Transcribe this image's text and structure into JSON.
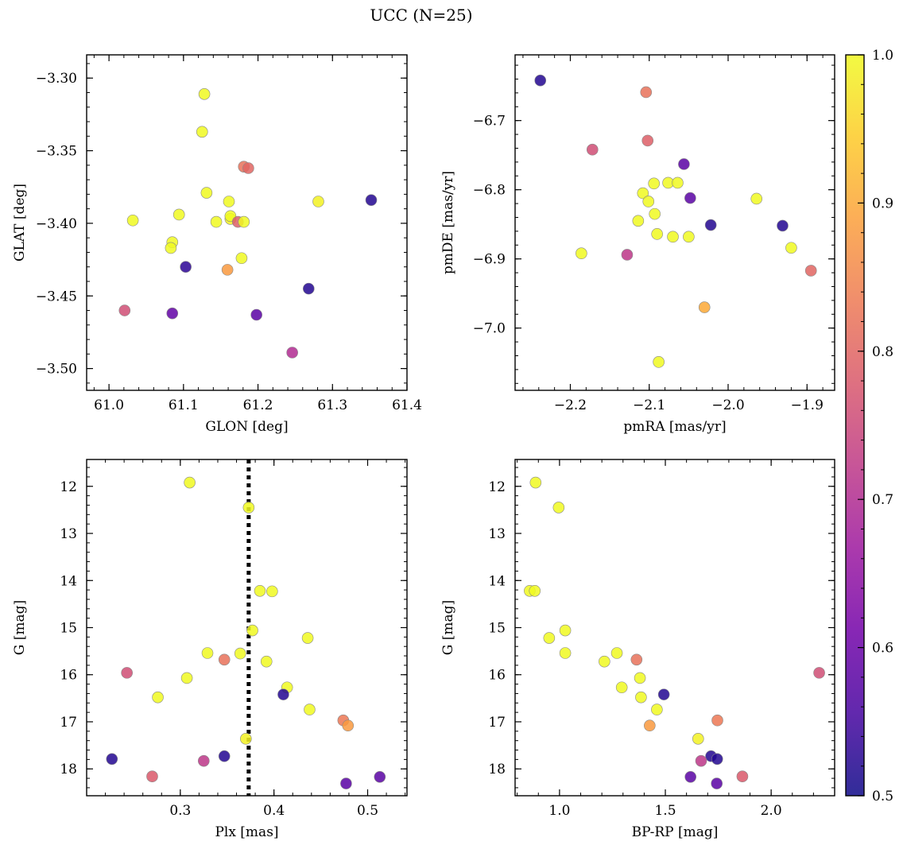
{
  "figure": {
    "title": "UCC (N=25)"
  },
  "chart_data": [
    {
      "type": "scatter",
      "panel": "top-left",
      "xlabel": "GLON [deg]",
      "ylabel": "GLAT [deg]",
      "xlim": [
        60.97,
        61.4
      ],
      "ylim": [
        -3.515,
        -3.284
      ],
      "y_inverted": false,
      "xticks": [
        61.0,
        61.1,
        61.2,
        61.3,
        61.4
      ],
      "xtick_labels": [
        "61.0",
        "61.1",
        "61.2",
        "61.3",
        "61.4"
      ],
      "yticks": [
        -3.3,
        -3.35,
        -3.4,
        -3.45,
        -3.5
      ],
      "ytick_labels": [
        "−3.30",
        "−3.35",
        "−3.40",
        "−3.45",
        "−3.50"
      ],
      "points": [
        {
          "x": 61.128,
          "y": -3.311,
          "c": 1.0
        },
        {
          "x": 61.125,
          "y": -3.337,
          "c": 1.0
        },
        {
          "x": 61.181,
          "y": -3.361,
          "c": 0.82
        },
        {
          "x": 61.187,
          "y": -3.362,
          "c": 0.8
        },
        {
          "x": 61.352,
          "y": -3.384,
          "c": 0.52
        },
        {
          "x": 61.281,
          "y": -3.385,
          "c": 0.99
        },
        {
          "x": 61.131,
          "y": -3.379,
          "c": 1.0
        },
        {
          "x": 61.161,
          "y": -3.385,
          "c": 1.0
        },
        {
          "x": 61.094,
          "y": -3.394,
          "c": 1.0
        },
        {
          "x": 61.032,
          "y": -3.398,
          "c": 1.0
        },
        {
          "x": 61.163,
          "y": -3.397,
          "c": 0.99
        },
        {
          "x": 61.163,
          "y": -3.395,
          "c": 1.0
        },
        {
          "x": 61.173,
          "y": -3.399,
          "c": 0.79
        },
        {
          "x": 61.181,
          "y": -3.399,
          "c": 1.0
        },
        {
          "x": 61.144,
          "y": -3.399,
          "c": 1.0
        },
        {
          "x": 61.085,
          "y": -3.413,
          "c": 1.0
        },
        {
          "x": 61.083,
          "y": -3.417,
          "c": 1.0
        },
        {
          "x": 61.178,
          "y": -3.424,
          "c": 1.0
        },
        {
          "x": 61.103,
          "y": -3.43,
          "c": 0.53
        },
        {
          "x": 61.159,
          "y": -3.432,
          "c": 0.88
        },
        {
          "x": 61.268,
          "y": -3.445,
          "c": 0.52
        },
        {
          "x": 61.021,
          "y": -3.46,
          "c": 0.76
        },
        {
          "x": 61.085,
          "y": -3.462,
          "c": 0.59
        },
        {
          "x": 61.198,
          "y": -3.463,
          "c": 0.58
        },
        {
          "x": 61.246,
          "y": -3.489,
          "c": 0.7
        }
      ]
    },
    {
      "type": "scatter",
      "panel": "top-right",
      "xlabel": "pmRA [mas/yr]",
      "ylabel": "pmDE [mas/yr]",
      "xlim": [
        -2.27,
        -1.865
      ],
      "ylim": [
        -7.09,
        -6.605
      ],
      "y_inverted": false,
      "xticks": [
        -2.2,
        -2.1,
        -2.0,
        -1.9
      ],
      "xtick_labels": [
        "−2.2",
        "−2.1",
        "−2.0",
        "−1.9"
      ],
      "yticks": [
        -6.7,
        -6.8,
        -6.9,
        -7.0
      ],
      "ytick_labels": [
        "−6.7",
        "−6.8",
        "−6.9",
        "−7.0"
      ],
      "points": [
        {
          "x": -2.238,
          "y": -6.642,
          "c": 0.52
        },
        {
          "x": -2.104,
          "y": -6.659,
          "c": 0.82
        },
        {
          "x": -2.102,
          "y": -6.729,
          "c": 0.79
        },
        {
          "x": -2.172,
          "y": -6.742,
          "c": 0.76
        },
        {
          "x": -2.056,
          "y": -6.763,
          "c": 0.58
        },
        {
          "x": -2.048,
          "y": -6.812,
          "c": 0.58
        },
        {
          "x": -2.094,
          "y": -6.791,
          "c": 1.0
        },
        {
          "x": -2.076,
          "y": -6.79,
          "c": 1.0
        },
        {
          "x": -2.064,
          "y": -6.79,
          "c": 1.0
        },
        {
          "x": -2.108,
          "y": -6.805,
          "c": 1.0
        },
        {
          "x": -1.964,
          "y": -6.813,
          "c": 1.0
        },
        {
          "x": -2.101,
          "y": -6.817,
          "c": 1.0
        },
        {
          "x": -2.093,
          "y": -6.835,
          "c": 1.0
        },
        {
          "x": -2.114,
          "y": -6.845,
          "c": 1.0
        },
        {
          "x": -2.022,
          "y": -6.851,
          "c": 0.52
        },
        {
          "x": -1.931,
          "y": -6.852,
          "c": 0.52
        },
        {
          "x": -2.09,
          "y": -6.864,
          "c": 1.0
        },
        {
          "x": -2.07,
          "y": -6.868,
          "c": 1.0
        },
        {
          "x": -2.05,
          "y": -6.868,
          "c": 1.0
        },
        {
          "x": -1.92,
          "y": -6.884,
          "c": 1.0
        },
        {
          "x": -2.186,
          "y": -6.892,
          "c": 1.0
        },
        {
          "x": -2.128,
          "y": -6.894,
          "c": 0.72
        },
        {
          "x": -1.895,
          "y": -6.917,
          "c": 0.8
        },
        {
          "x": -2.03,
          "y": -6.97,
          "c": 0.9
        },
        {
          "x": -2.088,
          "y": -7.049,
          "c": 1.0
        }
      ]
    },
    {
      "type": "scatter",
      "panel": "bottom-left",
      "xlabel": "Plx [mas]",
      "ylabel": "G [mag]",
      "xlim": [
        0.2,
        0.542
      ],
      "ylim": [
        11.43,
        18.57
      ],
      "y_inverted": true,
      "xticks": [
        0.3,
        0.4,
        0.5
      ],
      "xtick_labels": [
        "0.3",
        "0.4",
        "0.5"
      ],
      "yticks": [
        12,
        13,
        14,
        15,
        16,
        17,
        18
      ],
      "ytick_labels": [
        "12",
        "13",
        "14",
        "15",
        "16",
        "17",
        "18"
      ],
      "vline": {
        "x": 0.373,
        "style": "dotted"
      },
      "points": [
        {
          "x": 0.31,
          "y": 11.92,
          "c": 1.0
        },
        {
          "x": 0.373,
          "y": 12.45,
          "c": 1.0
        },
        {
          "x": 0.385,
          "y": 14.22,
          "c": 1.0
        },
        {
          "x": 0.398,
          "y": 14.23,
          "c": 1.0
        },
        {
          "x": 0.377,
          "y": 15.06,
          "c": 1.0
        },
        {
          "x": 0.436,
          "y": 15.22,
          "c": 1.0
        },
        {
          "x": 0.329,
          "y": 15.54,
          "c": 1.0
        },
        {
          "x": 0.364,
          "y": 15.55,
          "c": 1.0
        },
        {
          "x": 0.347,
          "y": 15.68,
          "c": 0.82
        },
        {
          "x": 0.392,
          "y": 15.72,
          "c": 1.0
        },
        {
          "x": 0.243,
          "y": 15.96,
          "c": 0.76
        },
        {
          "x": 0.307,
          "y": 16.07,
          "c": 1.0
        },
        {
          "x": 0.414,
          "y": 16.27,
          "c": 1.0
        },
        {
          "x": 0.41,
          "y": 16.42,
          "c": 0.52
        },
        {
          "x": 0.276,
          "y": 16.48,
          "c": 1.0
        },
        {
          "x": 0.438,
          "y": 16.74,
          "c": 1.0
        },
        {
          "x": 0.474,
          "y": 16.97,
          "c": 0.83
        },
        {
          "x": 0.479,
          "y": 17.08,
          "c": 0.88
        },
        {
          "x": 0.37,
          "y": 17.36,
          "c": 0.99
        },
        {
          "x": 0.347,
          "y": 17.73,
          "c": 0.52
        },
        {
          "x": 0.227,
          "y": 17.79,
          "c": 0.52
        },
        {
          "x": 0.325,
          "y": 17.83,
          "c": 0.72
        },
        {
          "x": 0.27,
          "y": 18.16,
          "c": 0.78
        },
        {
          "x": 0.513,
          "y": 18.17,
          "c": 0.58
        },
        {
          "x": 0.477,
          "y": 18.31,
          "c": 0.58
        }
      ]
    },
    {
      "type": "scatter",
      "panel": "bottom-right",
      "xlabel": "BP-RP [mag]",
      "ylabel": "G [mag]",
      "xlim": [
        0.79,
        2.3
      ],
      "ylim": [
        11.43,
        18.57
      ],
      "y_inverted": true,
      "xticks": [
        1.0,
        1.5,
        2.0
      ],
      "xtick_labels": [
        "1.0",
        "1.5",
        "2.0"
      ],
      "yticks": [
        12,
        13,
        14,
        15,
        16,
        17,
        18
      ],
      "ytick_labels": [
        "12",
        "13",
        "14",
        "15",
        "16",
        "17",
        "18"
      ],
      "points": [
        {
          "x": 0.887,
          "y": 11.92,
          "c": 1.0
        },
        {
          "x": 0.996,
          "y": 12.45,
          "c": 1.0
        },
        {
          "x": 0.859,
          "y": 14.22,
          "c": 1.0
        },
        {
          "x": 0.883,
          "y": 14.22,
          "c": 1.0
        },
        {
          "x": 1.027,
          "y": 15.06,
          "c": 1.0
        },
        {
          "x": 0.951,
          "y": 15.22,
          "c": 1.0
        },
        {
          "x": 1.027,
          "y": 15.54,
          "c": 1.0
        },
        {
          "x": 1.271,
          "y": 15.54,
          "c": 1.0
        },
        {
          "x": 1.364,
          "y": 15.68,
          "c": 0.82
        },
        {
          "x": 1.212,
          "y": 15.72,
          "c": 1.0
        },
        {
          "x": 2.227,
          "y": 15.96,
          "c": 0.76
        },
        {
          "x": 1.38,
          "y": 16.07,
          "c": 1.0
        },
        {
          "x": 1.294,
          "y": 16.27,
          "c": 1.0
        },
        {
          "x": 1.493,
          "y": 16.42,
          "c": 0.52
        },
        {
          "x": 1.385,
          "y": 16.48,
          "c": 1.0
        },
        {
          "x": 1.46,
          "y": 16.74,
          "c": 1.0
        },
        {
          "x": 1.746,
          "y": 16.97,
          "c": 0.83
        },
        {
          "x": 1.426,
          "y": 17.08,
          "c": 0.88
        },
        {
          "x": 1.655,
          "y": 17.36,
          "c": 0.99
        },
        {
          "x": 1.716,
          "y": 17.73,
          "c": 0.52
        },
        {
          "x": 1.745,
          "y": 17.79,
          "c": 0.52
        },
        {
          "x": 1.669,
          "y": 17.83,
          "c": 0.72
        },
        {
          "x": 1.864,
          "y": 18.16,
          "c": 0.78
        },
        {
          "x": 1.619,
          "y": 18.17,
          "c": 0.58
        },
        {
          "x": 1.743,
          "y": 18.31,
          "c": 0.58
        }
      ]
    }
  ],
  "colorbar": {
    "colormap": "plasma",
    "range": [
      0.5,
      1.0
    ],
    "ticks": [
      0.5,
      0.6,
      0.7,
      0.8,
      0.9,
      1.0
    ],
    "tick_labels": [
      "0.5",
      "0.6",
      "0.7",
      "0.8",
      "0.9",
      "1.0"
    ],
    "colors": [
      "#0d0887",
      "#46039f",
      "#7201a8",
      "#9c179e",
      "#bd3786",
      "#d8576b",
      "#ed7953",
      "#fb9f3a",
      "#fdca26",
      "#f0f921"
    ]
  }
}
